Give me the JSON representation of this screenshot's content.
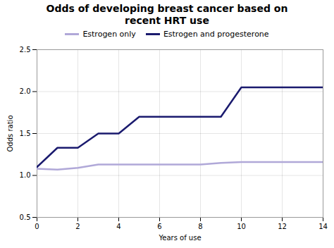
{
  "chart_data": {
    "type": "line",
    "title": "Odds of developing breast cancer based on\nrecent HRT use",
    "xlabel": "Years of use",
    "ylabel": "Odds ratio",
    "x": [
      0,
      1,
      2,
      3,
      4,
      5,
      6,
      7,
      8,
      9,
      10,
      11,
      12,
      13,
      14
    ],
    "series": [
      {
        "name": "Estrogen only",
        "color": "#b0a8d8",
        "values": [
          1.08,
          1.07,
          1.09,
          1.13,
          1.13,
          1.13,
          1.13,
          1.13,
          1.13,
          1.15,
          1.16,
          1.16,
          1.16,
          1.16,
          1.16
        ]
      },
      {
        "name": "Estrogen and progesterone",
        "color": "#1a1a6e",
        "values": [
          1.1,
          1.33,
          1.33,
          1.5,
          1.5,
          1.7,
          1.7,
          1.7,
          1.7,
          1.7,
          2.05,
          2.05,
          2.05,
          2.05,
          2.05
        ]
      }
    ],
    "xlim": [
      0,
      14
    ],
    "ylim": [
      0.5,
      2.5
    ],
    "xticks": [
      0,
      2,
      4,
      6,
      8,
      10,
      12,
      14
    ],
    "yticks": [
      0.5,
      {
        "value": 1,
        "label": "1.0"
      },
      1.5,
      {
        "value": 2,
        "label": "2.0"
      },
      2.5
    ],
    "grid": true,
    "legend": "top"
  }
}
